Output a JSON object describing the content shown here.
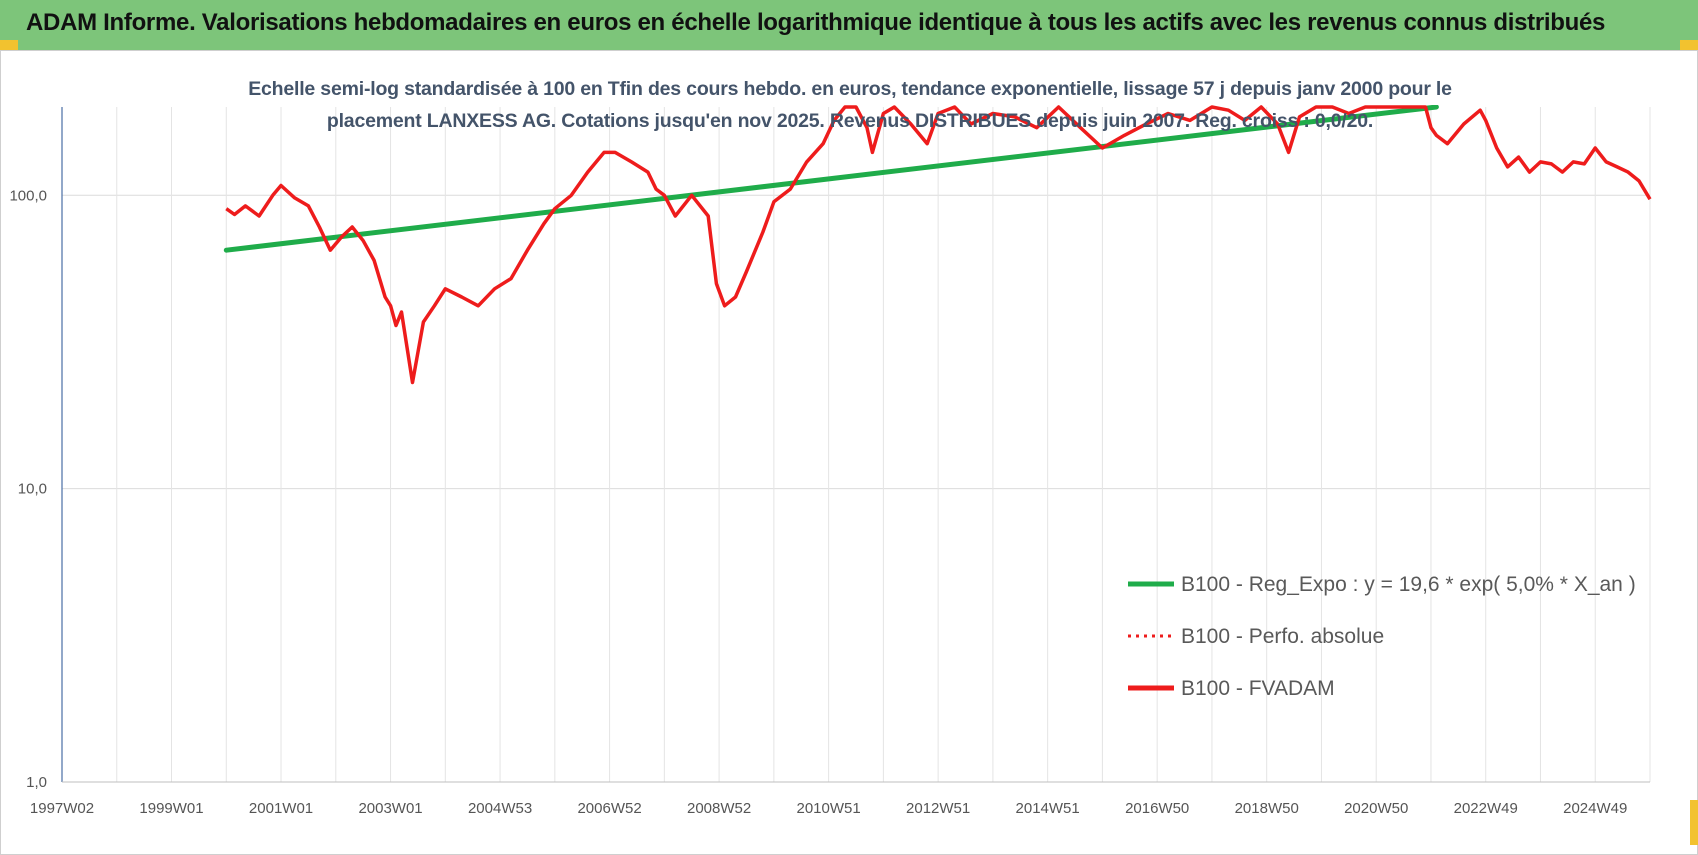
{
  "banner": {
    "title": "ADAM Informe. Valorisations hebdomadaires en euros en échelle logarithmique identique à tous les actifs avec les revenus connus distribués"
  },
  "colors": {
    "banner": "#7dc57a",
    "trend": "#1fac4a",
    "fvadam": "#ee1c1c",
    "corner": "#f2c22f"
  },
  "chart_data": {
    "type": "line",
    "title_line1": "Echelle semi-log standardisée à 100 en Tfin des cours hebdo. en euros, tendance exponentielle, lissage 57 j depuis janv 2000 pour le",
    "title_line2": "placement LANXESS AG. Cotations jusqu'en nov 2025. Revenus DISTRIBUES depuis juin 2007. Reg. croiss : 0,0/20.",
    "yscale": "log",
    "ylim": [
      1,
      200
    ],
    "xlim": [
      1997.0,
      2026.0
    ],
    "grid": true,
    "legend_position": "bottom-right",
    "y_ticks": [
      {
        "value": 1,
        "label": "1,0"
      },
      {
        "value": 10,
        "label": "10,0"
      },
      {
        "value": 100,
        "label": "100,0"
      }
    ],
    "x_ticks": [
      {
        "value": 1997.0,
        "label": "1997W02"
      },
      {
        "value": 1999.0,
        "label": "1999W01"
      },
      {
        "value": 2001.0,
        "label": "2001W01"
      },
      {
        "value": 2003.0,
        "label": "2003W01"
      },
      {
        "value": 2005.0,
        "label": "2004W53"
      },
      {
        "value": 2007.0,
        "label": "2006W52"
      },
      {
        "value": 2009.0,
        "label": "2008W52"
      },
      {
        "value": 2011.0,
        "label": "2010W51"
      },
      {
        "value": 2013.0,
        "label": "2012W51"
      },
      {
        "value": 2015.0,
        "label": "2014W51"
      },
      {
        "value": 2017.0,
        "label": "2016W50"
      },
      {
        "value": 2019.0,
        "label": "2018W50"
      },
      {
        "value": 2021.0,
        "label": "2020W50"
      },
      {
        "value": 2023.0,
        "label": "2022W49"
      },
      {
        "value": 2025.0,
        "label": "2024W49"
      }
    ],
    "series": [
      {
        "name": "B100 - Reg_Expo : y = 19,6 * exp( 5,0% *  X_an )",
        "style": "solid-green",
        "x": [
          2000.0,
          2022.1
        ],
        "y": [
          65,
          200
        ]
      },
      {
        "name": "B100 - Perfo. absolue",
        "style": "dotted-red",
        "x": [],
        "y": []
      },
      {
        "name": "B100 - FVADAM",
        "style": "solid-red",
        "x": [
          2000.0,
          2000.15,
          2000.35,
          2000.6,
          2000.85,
          2001.0,
          2001.25,
          2001.5,
          2001.7,
          2001.9,
          2002.1,
          2002.3,
          2002.5,
          2002.7,
          2002.9,
          2003.0,
          2003.1,
          2003.2,
          2003.4,
          2003.6,
          2003.8,
          2004.0,
          2004.3,
          2004.6,
          2004.9,
          2005.2,
          2005.5,
          2005.8,
          2006.0,
          2006.3,
          2006.6,
          2006.9,
          2007.1,
          2007.4,
          2007.7,
          2007.85,
          2008.0,
          2008.2,
          2008.5,
          2008.8,
          2008.95,
          2009.1,
          2009.3,
          2009.5,
          2009.8,
          2010.0,
          2010.3,
          2010.6,
          2010.9,
          2011.1,
          2011.3,
          2011.5,
          2011.7,
          2011.8,
          2012.0,
          2012.2,
          2012.5,
          2012.8,
          2013.0,
          2013.3,
          2013.6,
          2014.0,
          2014.4,
          2014.8,
          2015.2,
          2015.6,
          2016.0,
          2016.4,
          2016.8,
          2017.2,
          2017.6,
          2018.0,
          2018.3,
          2018.6,
          2018.9,
          2019.2,
          2019.4,
          2019.6,
          2019.9,
          2020.2,
          2020.5,
          2020.8,
          2021.1,
          2021.4,
          2021.7,
          2021.9,
          2022.0,
          2022.1,
          2022.3,
          2022.6,
          2022.9,
          2023.0,
          2023.2,
          2023.4,
          2023.6,
          2023.8,
          2024.0,
          2024.2,
          2024.4,
          2024.6,
          2024.8,
          2025.0,
          2025.2,
          2025.4,
          2025.6,
          2025.8,
          2026.0
        ],
        "y": [
          90,
          86,
          92,
          85,
          100,
          108,
          98,
          92,
          78,
          65,
          72,
          78,
          70,
          60,
          45,
          42,
          36,
          40,
          23,
          37,
          42,
          48,
          45,
          42,
          48,
          52,
          65,
          80,
          90,
          100,
          120,
          140,
          140,
          130,
          120,
          105,
          100,
          85,
          100,
          85,
          50,
          42,
          45,
          55,
          75,
          95,
          105,
          130,
          150,
          180,
          200,
          200,
          170,
          140,
          190,
          200,
          175,
          150,
          190,
          200,
          175,
          190,
          185,
          170,
          200,
          170,
          145,
          160,
          175,
          190,
          180,
          200,
          195,
          180,
          200,
          175,
          140,
          185,
          200,
          200,
          190,
          200,
          200,
          200,
          200,
          200,
          170,
          160,
          150,
          175,
          195,
          180,
          145,
          125,
          135,
          120,
          130,
          128,
          120,
          130,
          128,
          145,
          130,
          125,
          120,
          112,
          97
        ]
      }
    ]
  }
}
